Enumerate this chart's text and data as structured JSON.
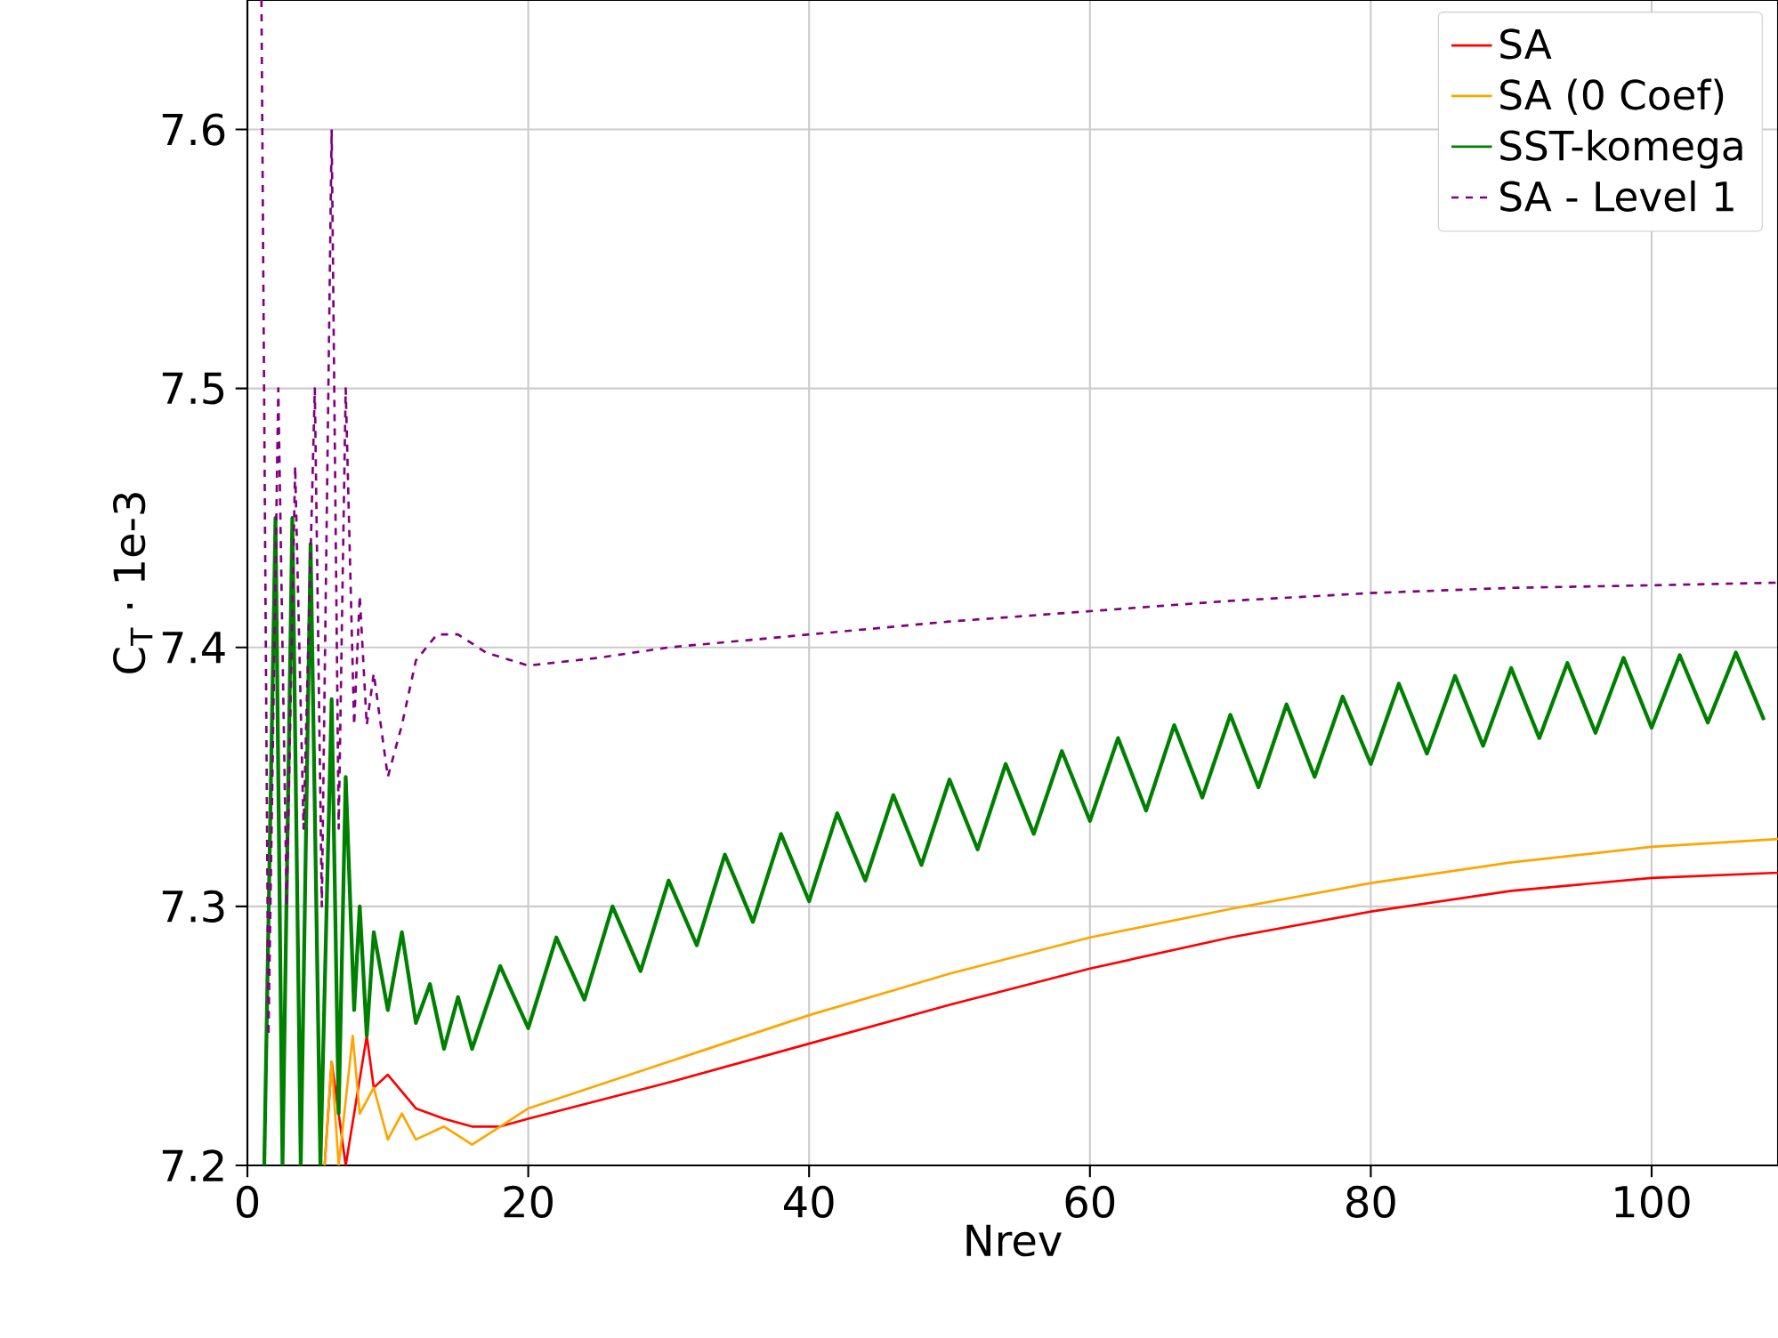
{
  "chart_data": {
    "type": "line",
    "xlabel": "Nrev",
    "ylabel": "C$_{T}$ · 1e-3",
    "xlim": [
      0,
      109
    ],
    "ylim": [
      7.2,
      7.65
    ],
    "xticks": [
      0,
      20,
      40,
      60,
      80,
      100
    ],
    "yticks": [
      7.2,
      7.3,
      7.4,
      7.5,
      7.6
    ],
    "grid": true,
    "legend": "top right",
    "marker": "none",
    "series": [
      {
        "name": "SA",
        "color": "#ff0000",
        "line_style": "solid",
        "x": [
          5.5,
          6,
          7,
          8.5,
          9,
          10,
          12,
          14,
          16,
          18,
          20,
          30,
          40,
          50,
          60,
          70,
          80,
          90,
          100,
          109
        ],
        "values": [
          7.2,
          7.24,
          7.2,
          7.25,
          7.23,
          7.235,
          7.222,
          7.218,
          7.215,
          7.215,
          7.218,
          7.232,
          7.247,
          7.262,
          7.276,
          7.288,
          7.298,
          7.306,
          7.311,
          7.313
        ]
      },
      {
        "name": "SA (0 Coef)",
        "color": "#ffa500",
        "line_style": "solid",
        "x": [
          5.5,
          6,
          6.5,
          7.5,
          8,
          9,
          10,
          11,
          12,
          14,
          16,
          18,
          20,
          30,
          40,
          50,
          60,
          70,
          80,
          90,
          100,
          109
        ],
        "values": [
          7.2,
          7.24,
          7.2,
          7.25,
          7.22,
          7.23,
          7.21,
          7.22,
          7.21,
          7.215,
          7.208,
          7.215,
          7.222,
          7.24,
          7.258,
          7.274,
          7.288,
          7.299,
          7.309,
          7.317,
          7.323,
          7.326
        ]
      },
      {
        "name": "SST-komega",
        "color": "#008000",
        "line_style": "solid",
        "x": [
          1.2,
          2,
          2.5,
          3.2,
          3.8,
          4.5,
          5.2,
          6,
          6.5,
          7,
          7.6,
          8,
          8.5,
          9,
          10,
          11,
          12,
          13,
          14,
          15,
          16,
          18,
          20,
          22,
          24,
          26,
          28,
          30,
          32,
          34,
          36,
          38,
          40,
          42,
          44,
          46,
          48,
          50,
          52,
          54,
          56,
          58,
          60,
          62,
          64,
          66,
          68,
          70,
          72,
          74,
          76,
          78,
          80,
          82,
          84,
          86,
          88,
          90,
          92,
          94,
          96,
          98,
          100,
          102,
          104,
          106,
          108
        ],
        "values": [
          7.2,
          7.45,
          7.2,
          7.45,
          7.2,
          7.44,
          7.2,
          7.38,
          7.22,
          7.35,
          7.26,
          7.3,
          7.25,
          7.29,
          7.26,
          7.29,
          7.255,
          7.27,
          7.245,
          7.265,
          7.245,
          7.277,
          7.253,
          7.288,
          7.264,
          7.3,
          7.275,
          7.31,
          7.285,
          7.32,
          7.294,
          7.328,
          7.302,
          7.336,
          7.31,
          7.343,
          7.316,
          7.349,
          7.322,
          7.355,
          7.328,
          7.36,
          7.333,
          7.365,
          7.337,
          7.37,
          7.342,
          7.374,
          7.346,
          7.378,
          7.35,
          7.381,
          7.355,
          7.386,
          7.359,
          7.389,
          7.362,
          7.392,
          7.365,
          7.394,
          7.367,
          7.396,
          7.369,
          7.397,
          7.371,
          7.398,
          7.372
        ]
      },
      {
        "name": "SA - Level 1",
        "color": "#800080",
        "line_style": "dashed",
        "x": [
          1,
          1.5,
          2.2,
          2.8,
          3.4,
          4,
          4.8,
          5.3,
          6,
          6.5,
          7,
          7.6,
          8,
          8.5,
          9,
          10,
          11,
          12,
          13.5,
          15,
          17,
          20,
          25,
          30,
          40,
          50,
          60,
          70,
          80,
          90,
          100,
          109
        ],
        "values": [
          7.65,
          7.25,
          7.5,
          7.3,
          7.47,
          7.33,
          7.5,
          7.3,
          7.6,
          7.33,
          7.5,
          7.37,
          7.42,
          7.37,
          7.39,
          7.35,
          7.37,
          7.395,
          7.405,
          7.405,
          7.398,
          7.393,
          7.396,
          7.4,
          7.405,
          7.41,
          7.414,
          7.418,
          7.421,
          7.423,
          7.424,
          7.425
        ]
      }
    ]
  }
}
